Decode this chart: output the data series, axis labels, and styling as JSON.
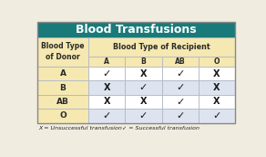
{
  "title": "Blood Transfusions",
  "title_bg": "#1a7a7a",
  "title_color": "#ffffff",
  "header_bg": "#f5e8b0",
  "donor_col_header": "Blood Type\nof Donor",
  "recipient_col_header": "Blood Type of Recipient",
  "recipient_cols": [
    "A",
    "B",
    "AB",
    "O"
  ],
  "donor_rows": [
    "A",
    "B",
    "AB",
    "O"
  ],
  "data": [
    [
      "✓",
      "X",
      "✓",
      "X"
    ],
    [
      "X",
      "✓",
      "✓",
      "X"
    ],
    [
      "X",
      "X",
      "✓",
      "X"
    ],
    [
      "✓",
      "✓",
      "✓",
      "✓"
    ]
  ],
  "row_bgs": [
    "#ffffff",
    "#dde4f0",
    "#ffffff",
    "#dde4f0"
  ],
  "grid_line_color": "#b0b8c8",
  "outer_bg": "#f0ece0",
  "legend_check": "✓ = Successful transfusion",
  "legend_x": "X = Unsuccessful transfusion"
}
